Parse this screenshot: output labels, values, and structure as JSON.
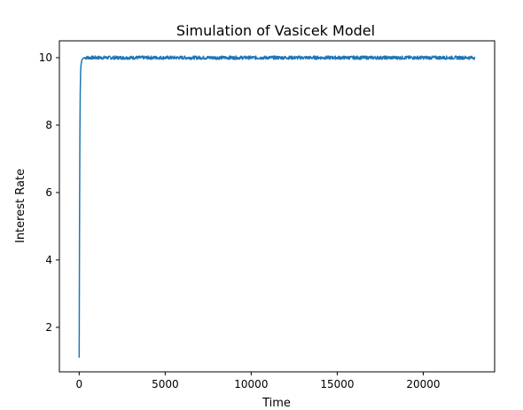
{
  "chart_data": {
    "type": "line",
    "title": "Simulation of Vasicek Model",
    "xlabel": "Time",
    "ylabel": "Interest Rate",
    "xlim": [
      -1150,
      24150
    ],
    "ylim": [
      0.68,
      10.5
    ],
    "xticks": [
      0,
      5000,
      10000,
      15000,
      20000
    ],
    "xtick_labels": [
      "0",
      "5000",
      "10000",
      "15000",
      "20000"
    ],
    "yticks": [
      2,
      4,
      6,
      8,
      10
    ],
    "ytick_labels": [
      "2",
      "4",
      "6",
      "8",
      "10"
    ],
    "grid": false,
    "series": [
      {
        "color": "#1f77b4",
        "points": [
          [
            0,
            1.1
          ],
          [
            20,
            5.0
          ],
          [
            40,
            7.6
          ],
          [
            60,
            8.9
          ],
          [
            80,
            9.5
          ],
          [
            100,
            9.75
          ],
          [
            150,
            9.92
          ],
          [
            200,
            9.97
          ],
          [
            300,
            10.0
          ]
        ],
        "steady_state": {
          "mean": 10.0,
          "noise_amplitude": 0.05,
          "x_start": 300,
          "x_end": 23000
        }
      }
    ]
  }
}
